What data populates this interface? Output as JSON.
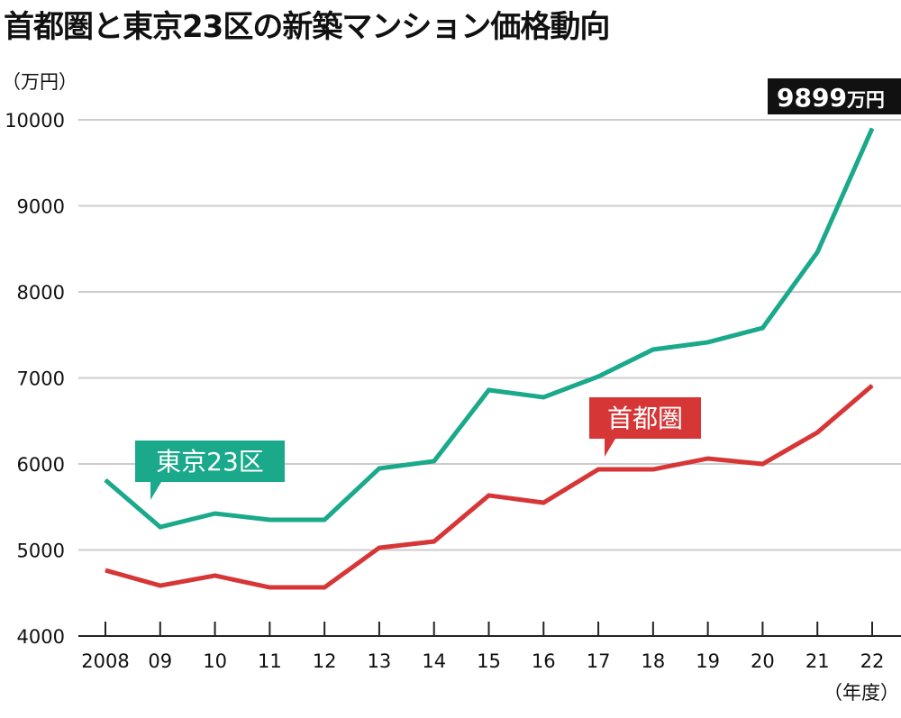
{
  "title": "首都圏と東京23区の新築マンション価格動向",
  "chart_data": {
    "type": "line",
    "title": "首都圏と東京23区の新築マンション価格動向",
    "ylabel": "（万円）",
    "xlabel": "（年度）",
    "categories": [
      "2008",
      "09",
      "10",
      "11",
      "12",
      "13",
      "14",
      "15",
      "16",
      "17",
      "18",
      "19",
      "20",
      "21",
      "22"
    ],
    "ylim": [
      4000,
      10000
    ],
    "yticks": [
      4000,
      5000,
      6000,
      7000,
      8000,
      9000,
      10000
    ],
    "grid": true,
    "series": [
      {
        "name": "東京23区",
        "color": "#1aa98a",
        "values": [
          5813,
          5267,
          5424,
          5351,
          5351,
          5948,
          6032,
          6859,
          6775,
          7016,
          7330,
          7414,
          7581,
          8461,
          9899
        ]
      },
      {
        "name": "首都圏",
        "color": "#d63636",
        "values": [
          4764,
          4586,
          4702,
          4565,
          4565,
          5026,
          5099,
          5634,
          5550,
          5937,
          5937,
          6063,
          6000,
          6366,
          6911
        ]
      }
    ],
    "annotation": {
      "value": "9899",
      "unit": "万円"
    }
  }
}
